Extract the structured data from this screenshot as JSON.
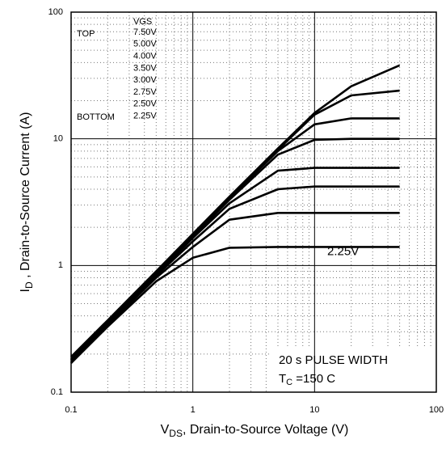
{
  "chart_data": {
    "type": "line",
    "xlabel": {
      "symbol": "V",
      "subscript": "DS",
      "text": ", Drain-to-Source Voltage (V)"
    },
    "ylabel": {
      "symbol": "I",
      "subscript": "D",
      "text": " , Drain-to-Source Current (A)"
    },
    "xscale": "log",
    "yscale": "log",
    "xlim": [
      0.1,
      100
    ],
    "ylim": [
      0.1,
      100
    ],
    "xticks": [
      0.1,
      1,
      10,
      100
    ],
    "yticks": [
      0.1,
      1,
      10,
      100
    ],
    "grid": true,
    "color": "#000000",
    "legend": {
      "title": "VGS",
      "top": "TOP",
      "bottom": "BOTTOM"
    },
    "annotations": {
      "pulse": "20 s PULSE WIDTH",
      "temp": {
        "symbol": "T",
        "subscript": "C",
        "text": " =150 C"
      }
    },
    "x": [
      0.1,
      0.2,
      0.5,
      1,
      2,
      5,
      10,
      20,
      50
    ],
    "series": [
      {
        "name": "7.50V",
        "values": [
          0.19,
          0.37,
          0.9,
          1.78,
          3.5,
          8.4,
          16,
          26,
          38
        ]
      },
      {
        "name": "5.00V",
        "values": [
          0.18,
          0.36,
          0.88,
          1.75,
          3.4,
          8.2,
          15.5,
          22,
          24
        ]
      },
      {
        "name": "4.00V",
        "values": [
          0.18,
          0.36,
          0.88,
          1.72,
          3.4,
          8.0,
          13,
          14.5,
          14.5
        ]
      },
      {
        "name": "3.50V",
        "values": [
          0.18,
          0.36,
          0.87,
          1.7,
          3.3,
          7.5,
          9.8,
          10,
          10
        ]
      },
      {
        "name": "3.00V",
        "values": [
          0.18,
          0.35,
          0.85,
          1.65,
          3.1,
          5.6,
          5.9,
          5.9,
          5.9
        ]
      },
      {
        "name": "2.75V",
        "values": [
          0.17,
          0.35,
          0.83,
          1.55,
          2.8,
          4.0,
          4.2,
          4.2,
          4.2
        ]
      },
      {
        "name": "2.50V",
        "values": [
          0.17,
          0.34,
          0.8,
          1.4,
          2.3,
          2.6,
          2.6,
          2.6,
          2.6
        ]
      },
      {
        "name": "2.25V",
        "values": [
          0.17,
          0.33,
          0.75,
          1.15,
          1.38,
          1.4,
          1.4,
          1.4,
          1.4
        ]
      }
    ]
  }
}
